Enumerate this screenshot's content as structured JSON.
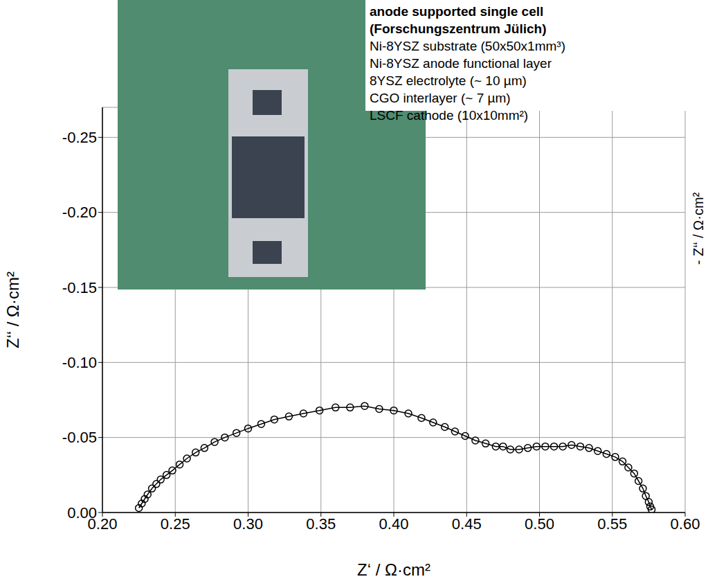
{
  "chart_data": {
    "type": "scatter",
    "x_label": "Z‘ / Ω·cm²",
    "y_label": "Z‘‘ / Ω·cm²",
    "right_label": "- Z‘‘ / Ω·cm²",
    "color": "#000000",
    "marker": "open_circle",
    "line_style": "solid",
    "grid": true,
    "xlim": [
      0.2,
      0.6
    ],
    "ylim": [
      0,
      -0.27
    ],
    "xticks": [
      {
        "value": 0.2,
        "label": "0.20"
      },
      {
        "value": 0.25,
        "label": "0.25"
      },
      {
        "value": 0.3,
        "label": "0.30"
      },
      {
        "value": 0.35,
        "label": "0.35"
      },
      {
        "value": 0.4,
        "label": "0.40"
      },
      {
        "value": 0.45,
        "label": "0.45"
      },
      {
        "value": 0.5,
        "label": "0.50"
      },
      {
        "value": 0.55,
        "label": "0.55"
      },
      {
        "value": 0.6,
        "label": "0.60"
      }
    ],
    "yticks": [
      {
        "value": 0,
        "label": "0.00"
      },
      -0.05,
      {
        "value": -0.1,
        "label": "-0.10"
      },
      -0.15,
      {
        "value": -0.2,
        "label": "-0.20"
      },
      -0.25
    ],
    "x": [
      0.225,
      0.227,
      0.229,
      0.231,
      0.234,
      0.237,
      0.24,
      0.244,
      0.248,
      0.253,
      0.258,
      0.264,
      0.27,
      0.277,
      0.284,
      0.292,
      0.3,
      0.309,
      0.318,
      0.328,
      0.338,
      0.349,
      0.36,
      0.37,
      0.38,
      0.39,
      0.4,
      0.41,
      0.419,
      0.427,
      0.435,
      0.442,
      0.449,
      0.456,
      0.463,
      0.47,
      0.475,
      0.48,
      0.486,
      0.492,
      0.498,
      0.504,
      0.51,
      0.516,
      0.522,
      0.528,
      0.534,
      0.54,
      0.546,
      0.552,
      0.557,
      0.561,
      0.565,
      0.568,
      0.571,
      0.573,
      0.575,
      0.576,
      0.577
    ],
    "values": [
      -0.003,
      -0.006,
      -0.009,
      -0.012,
      -0.016,
      -0.019,
      -0.022,
      -0.025,
      -0.028,
      -0.032,
      -0.036,
      -0.04,
      -0.043,
      -0.047,
      -0.05,
      -0.053,
      -0.056,
      -0.059,
      -0.062,
      -0.064,
      -0.066,
      -0.068,
      -0.07,
      -0.07,
      -0.071,
      -0.069,
      -0.068,
      -0.066,
      -0.063,
      -0.06,
      -0.057,
      -0.054,
      -0.051,
      -0.048,
      -0.046,
      -0.044,
      -0.044,
      -0.042,
      -0.042,
      -0.043,
      -0.044,
      -0.044,
      -0.044,
      -0.044,
      -0.045,
      -0.044,
      -0.043,
      -0.041,
      -0.039,
      -0.037,
      -0.034,
      -0.03,
      -0.026,
      -0.021,
      -0.016,
      -0.011,
      -0.007,
      -0.004,
      -0.002
    ]
  },
  "inset": {
    "title": "anode supported single cell",
    "subtitle": "(Forschungszentrum Jülich)",
    "lines": [
      "Ni-8YSZ  substrate (50x50x1mm³)",
      "Ni-8YSZ anode functional layer",
      "8YSZ electrolyte (~ 10 µm)",
      "CGO interlayer (~ 7 µm)",
      "LSCF cathode (10x10mm²)"
    ]
  }
}
